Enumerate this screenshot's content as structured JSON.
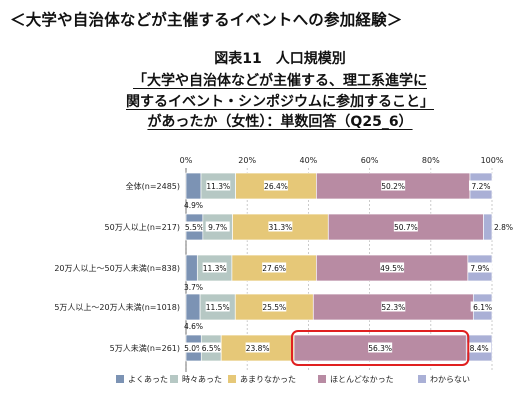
{
  "heading": "＜大学や自治体などが主催するイベントへの参加経験＞",
  "title_lines": [
    "図表11　人口規模別",
    "「大学や自治体などが主催する、理工系進学に",
    "関するイベント・シンポジウムに参加すること」",
    "があったか（女性）：単数回答（Q25_6）"
  ],
  "colors": {
    "よくあった": "#7c93b4",
    "時々あった": "#b6c8c4",
    "あまりなかった": "#e6c878",
    "ほとんどなかった": "#b88ba3",
    "わからない": "#aab0d6",
    "highlight": "#e02020"
  },
  "chart_data": {
    "type": "bar",
    "orientation": "horizontal",
    "stacked": true,
    "xlim": [
      0,
      100
    ],
    "x_ticks": [
      "0%",
      "20%",
      "40%",
      "60%",
      "80%",
      "100%"
    ],
    "grid": true,
    "legend_position": "bottom",
    "categories": [
      "全体(n=2485)",
      "50万人以上(n=217)",
      "20万人以上～50万人未満(n=838)",
      "5万人以上～20万人未満(n=1018)",
      "5万人未満(n=261)"
    ],
    "series": [
      {
        "name": "よくあった",
        "values": [
          4.9,
          5.5,
          3.7,
          4.6,
          5.0
        ],
        "labels": [
          "4.9%",
          "5.5%",
          "3.7%",
          "4.6%",
          "5.0%"
        ]
      },
      {
        "name": "時々あった",
        "values": [
          11.3,
          9.7,
          11.3,
          11.5,
          6.5
        ],
        "labels": [
          "11.3%",
          "9.7%",
          "11.3%",
          "11.5%",
          "6.5%"
        ]
      },
      {
        "name": "あまりなかった",
        "values": [
          26.4,
          31.3,
          27.6,
          25.5,
          23.8
        ],
        "labels": [
          "26.4%",
          "31.3%",
          "27.6%",
          "25.5%",
          "23.8%"
        ]
      },
      {
        "name": "ほとんどなかった",
        "values": [
          50.2,
          50.7,
          49.5,
          52.3,
          56.3
        ],
        "labels": [
          "50.2%",
          "50.7%",
          "49.5%",
          "52.3%",
          "56.3%"
        ]
      },
      {
        "name": "わからない",
        "values": [
          7.2,
          2.8,
          7.9,
          6.1,
          8.4
        ],
        "labels": [
          "7.2%",
          "2.8%",
          "7.9%",
          "6.1%",
          "8.4%"
        ]
      }
    ],
    "highlight": {
      "category_index": 4,
      "series_index": 3
    }
  }
}
